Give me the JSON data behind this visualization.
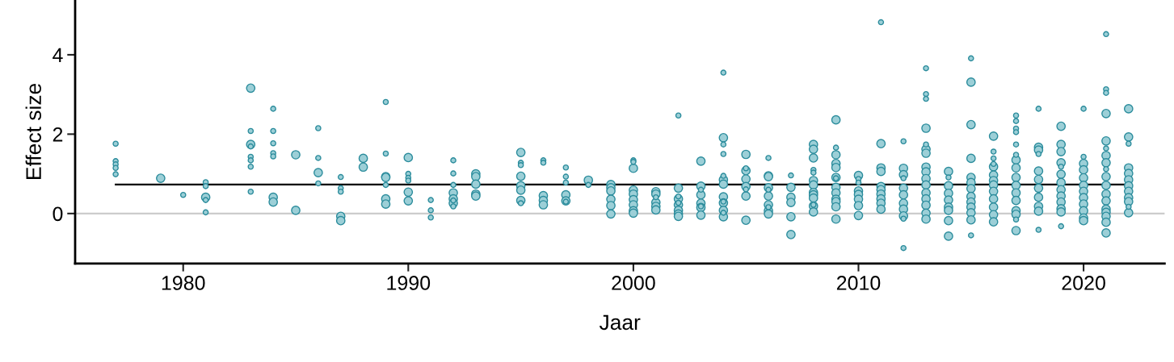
{
  "chart_data": {
    "type": "bubble",
    "xlabel": "Jaar",
    "ylabel": "Effect size",
    "xlim": [
      1975.2,
      2023.6
    ],
    "ylim": [
      -1.26,
      5.38
    ],
    "xticks": [
      1980,
      1990,
      2000,
      2010,
      2020
    ],
    "yticks": [
      0,
      2,
      4
    ],
    "grid": false,
    "legend": false,
    "ref_lines": [
      {
        "axis": "y",
        "value": 0,
        "color": "#cccccc"
      }
    ],
    "series": [
      {
        "color": "#9ccfd7",
        "x": [
          1977,
          1977,
          1977,
          1977,
          1977,
          1979,
          1980,
          1981,
          1981,
          1981,
          1981,
          1981,
          1983,
          1983,
          1983,
          1983,
          1983,
          1983,
          1983,
          1983,
          1984,
          1984,
          1984,
          1984,
          1984,
          1984,
          1984,
          1985,
          1985,
          1986,
          1986,
          1986,
          1986,
          1987,
          1987,
          1987,
          1987,
          1987,
          1988,
          1988,
          1989,
          1989,
          1989,
          1989,
          1989,
          1989,
          1989,
          1990,
          1990,
          1990,
          1990,
          1990,
          1990,
          1991,
          1991,
          1991,
          1992,
          1992,
          1992,
          1992,
          1992,
          1992,
          1992,
          1992,
          1993,
          1993,
          1993,
          1993,
          1993,
          1995,
          1995,
          1995,
          1995,
          1995,
          1995,
          1995,
          1995,
          1996,
          1996,
          1996,
          1996,
          1996,
          1997,
          1997,
          1997,
          1997,
          1997,
          1997,
          1998,
          1998,
          1999,
          1999,
          1999,
          1999,
          1999,
          1999,
          2000,
          2000,
          2000,
          2000,
          2000,
          2000,
          2000,
          2000,
          2000,
          2001,
          2001,
          2001,
          2001,
          2001,
          2001,
          2002,
          2002,
          2002,
          2002,
          2002,
          2002,
          2002,
          2002,
          2002,
          2003,
          2003,
          2003,
          2003,
          2003,
          2003,
          2003,
          2003,
          2004,
          2004,
          2004,
          2004,
          2004,
          2004,
          2004,
          2004,
          2004,
          2004,
          2004,
          2004,
          2004,
          2005,
          2005,
          2005,
          2005,
          2005,
          2005,
          2005,
          2005,
          2006,
          2006,
          2006,
          2006,
          2006,
          2006,
          2006,
          2006,
          2006,
          2006,
          2007,
          2007,
          2007,
          2007,
          2007,
          2007,
          2008,
          2008,
          2008,
          2008,
          2008,
          2008,
          2008,
          2008,
          2008,
          2008,
          2008,
          2008,
          2008,
          2009,
          2009,
          2009,
          2009,
          2009,
          2009,
          2009,
          2009,
          2009,
          2009,
          2009,
          2009,
          2009,
          2010,
          2010,
          2010,
          2010,
          2010,
          2010,
          2010,
          2010,
          2011,
          2011,
          2011,
          2011,
          2011,
          2011,
          2011,
          2011,
          2011,
          2011,
          2012,
          2012,
          2012,
          2012,
          2012,
          2012,
          2012,
          2012,
          2012,
          2012,
          2012,
          2013,
          2013,
          2013,
          2013,
          2013,
          2013,
          2013,
          2013,
          2013,
          2013,
          2013,
          2013,
          2013,
          2013,
          2013,
          2013,
          2014,
          2014,
          2014,
          2014,
          2014,
          2014,
          2014,
          2014,
          2014,
          2015,
          2015,
          2015,
          2015,
          2015,
          2015,
          2015,
          2015,
          2015,
          2015,
          2015,
          2015,
          2015,
          2016,
          2016,
          2016,
          2016,
          2016,
          2016,
          2016,
          2016,
          2016,
          2016,
          2016,
          2016,
          2016,
          2017,
          2017,
          2017,
          2017,
          2017,
          2017,
          2017,
          2017,
          2017,
          2017,
          2017,
          2017,
          2017,
          2017,
          2017,
          2017,
          2018,
          2018,
          2018,
          2018,
          2018,
          2018,
          2018,
          2018,
          2018,
          2018,
          2018,
          2019,
          2019,
          2019,
          2019,
          2019,
          2019,
          2019,
          2019,
          2019,
          2019,
          2019,
          2019,
          2019,
          2020,
          2020,
          2020,
          2020,
          2020,
          2020,
          2020,
          2020,
          2020,
          2020,
          2020,
          2020,
          2021,
          2021,
          2021,
          2021,
          2021,
          2021,
          2021,
          2021,
          2021,
          2021,
          2021,
          2021,
          2021,
          2021,
          2021,
          2021,
          2021,
          2021,
          2022,
          2022,
          2022,
          2022,
          2022,
          2022,
          2022,
          2022,
          2022,
          2022,
          2022,
          2022
        ],
        "values": [
          1.76,
          1.32,
          1.24,
          1.15,
          0.99,
          0.89,
          0.47,
          0.79,
          0.69,
          0.41,
          0.34,
          0.03,
          3.16,
          2.08,
          1.74,
          1.69,
          1.43,
          1.34,
          1.18,
          0.55,
          2.64,
          2.08,
          1.77,
          1.52,
          1.44,
          0.41,
          0.29,
          1.48,
          0.08,
          2.15,
          1.4,
          1.03,
          0.76,
          0.92,
          0.64,
          0.55,
          -0.07,
          -0.18,
          1.39,
          1.17,
          2.81,
          1.51,
          0.93,
          0.91,
          0.72,
          0.37,
          0.24,
          1.41,
          1.0,
          0.9,
          0.83,
          0.54,
          0.32,
          0.34,
          0.08,
          -0.1,
          1.34,
          1.01,
          0.72,
          0.52,
          0.37,
          0.33,
          0.26,
          0.18,
          1.0,
          0.93,
          0.74,
          0.49,
          0.44,
          1.54,
          1.28,
          1.22,
          0.94,
          0.7,
          0.59,
          0.33,
          0.26,
          1.34,
          1.28,
          0.45,
          0.33,
          0.22,
          1.16,
          0.93,
          0.78,
          0.47,
          0.32,
          0.3,
          0.84,
          0.72,
          0.73,
          0.65,
          0.57,
          0.36,
          0.2,
          -0.01,
          1.34,
          1.3,
          1.14,
          0.59,
          0.49,
          0.35,
          0.22,
          0.07,
          0.01,
          0.55,
          0.49,
          0.41,
          0.28,
          0.18,
          0.09,
          2.47,
          0.64,
          0.43,
          0.37,
          0.27,
          0.22,
          0.08,
          -0.01,
          -0.07,
          1.32,
          0.69,
          0.6,
          0.47,
          0.26,
          0.18,
          0.15,
          -0.04,
          3.55,
          1.91,
          1.74,
          1.5,
          0.95,
          0.85,
          0.74,
          0.42,
          0.3,
          0.27,
          0.08,
          0.02,
          -0.08,
          1.49,
          1.14,
          1.08,
          0.87,
          0.68,
          0.61,
          0.44,
          -0.17,
          1.4,
          0.95,
          0.93,
          0.65,
          0.6,
          0.44,
          0.22,
          0.16,
          0.07,
          -0.01,
          0.96,
          0.66,
          0.41,
          0.28,
          -0.08,
          -0.53,
          1.74,
          1.62,
          1.4,
          1.1,
          1.03,
          0.83,
          0.72,
          0.53,
          0.47,
          0.39,
          0.22,
          0.19,
          0.04,
          2.36,
          1.66,
          1.48,
          1.26,
          1.16,
          0.91,
          0.89,
          0.66,
          0.52,
          0.36,
          0.3,
          0.17,
          -0.14,
          0.96,
          0.87,
          0.78,
          0.57,
          0.48,
          0.36,
          0.2,
          -0.05,
          4.82,
          1.76,
          1.15,
          1.06,
          0.68,
          0.6,
          0.49,
          0.37,
          0.26,
          0.11,
          1.82,
          1.14,
          0.98,
          0.89,
          0.64,
          0.47,
          0.26,
          0.11,
          -0.06,
          -0.13,
          -0.87,
          3.66,
          3.01,
          2.89,
          2.15,
          1.74,
          1.62,
          1.52,
          1.17,
          1.05,
          0.88,
          0.72,
          0.52,
          0.37,
          0.21,
          0.01,
          -0.14,
          1.06,
          0.91,
          0.7,
          0.51,
          0.34,
          0.16,
          0.08,
          -0.18,
          -0.57,
          3.91,
          3.31,
          2.24,
          1.39,
          0.91,
          0.78,
          0.63,
          0.43,
          0.29,
          0.16,
          0.02,
          -0.16,
          -0.55,
          1.95,
          1.56,
          1.39,
          1.25,
          1.18,
          0.97,
          0.83,
          0.72,
          0.56,
          0.37,
          0.16,
          -0.03,
          -0.21,
          2.47,
          2.33,
          2.14,
          2.05,
          1.74,
          1.48,
          1.35,
          1.15,
          0.91,
          0.71,
          0.52,
          0.33,
          0.07,
          -0.02,
          -0.15,
          -0.43,
          2.64,
          1.67,
          1.6,
          1.5,
          1.07,
          0.86,
          0.64,
          0.41,
          0.18,
          0.06,
          -0.41,
          2.2,
          1.74,
          1.56,
          1.28,
          1.18,
          0.99,
          0.78,
          0.6,
          0.44,
          0.29,
          0.12,
          0.04,
          -0.32,
          2.64,
          1.43,
          1.26,
          1.1,
          0.9,
          0.71,
          0.56,
          0.4,
          0.24,
          0.07,
          -0.11,
          -0.18,
          4.52,
          3.13,
          3.04,
          2.52,
          1.83,
          1.64,
          1.46,
          1.28,
          1.12,
          0.93,
          0.71,
          0.49,
          0.32,
          0.11,
          0.03,
          -0.07,
          -0.22,
          -0.49,
          2.64,
          1.93,
          1.76,
          1.15,
          1.01,
          0.85,
          0.7,
          0.56,
          0.4,
          0.3,
          0.17,
          0.02
        ],
        "sizes": [
          0.36,
          0.36,
          0.36,
          0.36,
          0.36,
          1,
          0.36,
          0.36,
          0.36,
          1,
          0.36,
          0.36,
          1,
          0.36,
          1,
          0.36,
          0.36,
          0.36,
          0.36,
          0.36,
          0.36,
          0.36,
          0.36,
          0.36,
          0.36,
          1,
          1,
          1,
          1,
          0.36,
          0.36,
          1,
          0.36,
          0.36,
          0.36,
          0.36,
          1,
          1,
          1,
          1,
          0.36,
          0.36,
          1,
          1,
          0.36,
          1,
          1,
          1,
          0.36,
          0.36,
          0.36,
          1,
          1,
          0.36,
          0.36,
          0.36,
          0.36,
          0.36,
          0.36,
          1,
          1,
          0.36,
          1,
          0.36,
          1,
          1,
          1,
          1,
          1,
          1,
          0.36,
          0.36,
          1,
          1,
          1,
          1,
          0.36,
          0.36,
          0.36,
          1,
          1,
          1,
          0.36,
          0.36,
          0.36,
          1,
          1,
          0.36,
          1,
          0.36,
          1,
          1,
          1,
          1,
          1,
          1,
          0.36,
          0.36,
          1,
          1,
          1,
          1,
          1,
          1,
          1,
          1,
          1,
          0.36,
          1,
          1,
          1,
          0.36,
          1,
          0.36,
          1,
          0.36,
          1,
          1,
          1,
          1,
          1,
          1,
          0.36,
          1,
          1,
          0.36,
          1,
          1,
          0.36,
          1,
          0.36,
          0.36,
          0.36,
          1,
          1,
          1,
          0.36,
          1,
          1,
          0.36,
          1,
          1,
          0.36,
          1,
          1,
          1,
          0.36,
          1,
          1,
          0.36,
          1,
          1,
          1,
          0.36,
          1,
          1,
          0.36,
          1,
          1,
          0.36,
          1,
          1,
          1,
          1,
          1,
          1,
          1,
          1,
          0.36,
          0.36,
          1,
          1,
          1,
          1,
          1,
          0.36,
          1,
          1,
          1,
          0.36,
          1,
          1,
          1,
          1,
          0.36,
          1,
          1,
          1,
          1,
          1,
          1,
          1,
          0.36,
          0.36,
          1,
          1,
          1,
          1,
          1,
          0.36,
          1,
          1,
          1,
          1,
          1,
          1,
          1,
          1,
          1,
          0.36,
          1,
          1,
          0.36,
          1,
          1,
          1,
          1,
          1,
          0.36,
          0.36,
          0.36,
          0.36,
          0.36,
          1,
          0.36,
          1,
          1,
          1,
          1,
          1,
          1,
          1,
          1,
          1,
          1,
          1,
          1,
          0.36,
          1,
          1,
          1,
          1,
          1,
          1,
          1,
          0.36,
          1,
          1,
          1,
          1,
          1,
          1,
          1,
          1,
          1,
          1,
          1,
          0.36,
          1,
          0.36,
          0.36,
          0.36,
          1,
          1,
          1,
          1,
          1,
          1,
          1,
          1,
          1,
          0.36,
          0.36,
          0.36,
          0.36,
          0.36,
          0.36,
          1,
          1,
          1,
          1,
          1,
          1,
          1,
          1,
          0.36,
          1,
          0.36,
          1,
          1,
          0.36,
          1,
          1,
          1,
          1,
          1,
          1,
          0.36,
          1,
          1,
          1,
          1,
          0.36,
          1,
          1,
          1,
          1,
          1,
          1,
          1,
          0.36,
          0.36,
          0.36,
          1,
          1,
          1,
          1,
          1,
          1,
          1,
          1,
          1,
          1,
          0.36,
          0.36,
          0.36,
          1,
          1,
          0.36,
          1,
          1,
          0.36,
          1,
          1,
          1,
          1,
          1,
          1,
          1,
          1,
          1,
          1,
          1,
          0.36,
          1,
          1,
          1,
          1,
          1,
          1,
          1,
          0.36,
          1
        ]
      },
      {
        "type": "line",
        "color": "#000000",
        "x": [
          1977,
          2022
        ],
        "values": [
          0.73,
          0.73
        ]
      }
    ]
  }
}
